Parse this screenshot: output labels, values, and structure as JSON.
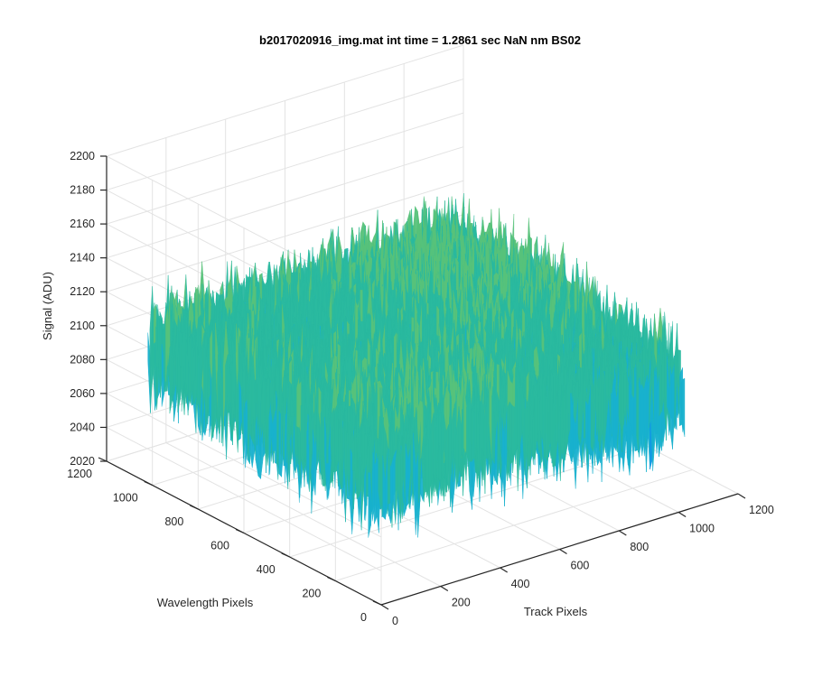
{
  "chart_data": {
    "type": "surface",
    "title": "b2017020916_img.mat int time = 1.2861 sec  NaN nm BS02",
    "xlabel": "Track Pixels",
    "ylabel": "Wavelength Pixels",
    "zlabel": "Signal (ADU)",
    "xlim": [
      0,
      1200
    ],
    "ylim": [
      0,
      1200
    ],
    "zlim": [
      2020,
      2200
    ],
    "x_ticks": [
      "0",
      "200",
      "400",
      "600",
      "800",
      "1000",
      "1200"
    ],
    "y_ticks": [
      "0",
      "200",
      "400",
      "600",
      "800",
      "1000",
      "1200"
    ],
    "z_ticks": [
      "2020",
      "2040",
      "2060",
      "2080",
      "2100",
      "2120",
      "2140",
      "2160",
      "2180",
      "2200"
    ],
    "surface_extent": {
      "x": [
        0,
        1024
      ],
      "y": [
        0,
        1024
      ]
    },
    "signal_mean": 2110,
    "signal_range": [
      2045,
      2185
    ],
    "colormap": [
      "#0c6ee0",
      "#1197e6",
      "#18b1ce",
      "#2ab99f",
      "#57c27a",
      "#a3c048",
      "#e7ba2f"
    ],
    "grid": true,
    "view": "3d-perspective"
  }
}
